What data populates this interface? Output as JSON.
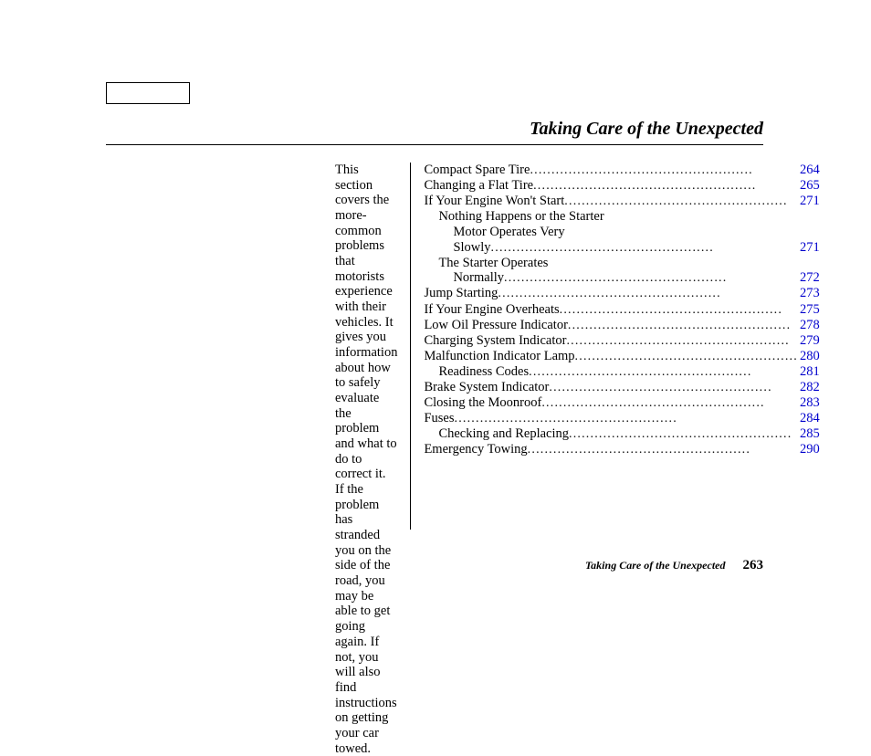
{
  "title": "Taking Care of the Unexpected",
  "intro": "This section covers the more-common problems that motorists experience with their vehicles. It gives you information about how to safely evaluate the problem and what to do to correct it. If the problem has stranded you on the side of the road, you may be able to get going again. If not, you will also find instructions on getting your car towed.",
  "toc": [
    {
      "label": "Compact Spare Tire",
      "page": "264",
      "indent": 0,
      "dots": true
    },
    {
      "label": "Changing a Flat Tire",
      "page": "265",
      "indent": 0,
      "dots": true
    },
    {
      "label": "If Your Engine Won't Start",
      "page": "271",
      "indent": 0,
      "dots": true
    },
    {
      "label": "Nothing Happens or the Starter",
      "page": "",
      "indent": 1,
      "dots": false
    },
    {
      "label": "Motor Operates Very",
      "page": "",
      "indent": 2,
      "dots": false
    },
    {
      "label": "Slowly",
      "page": "271",
      "indent": 2,
      "dots": true
    },
    {
      "label": "The Starter Operates",
      "page": "",
      "indent": 1,
      "dots": false
    },
    {
      "label": "Normally",
      "page": "272",
      "indent": 2,
      "dots": true
    },
    {
      "label": "Jump Starting",
      "page": "273",
      "indent": 0,
      "dots": true
    },
    {
      "label": "If Your Engine Overheats",
      "page": "275",
      "indent": 0,
      "dots": true
    },
    {
      "label": "Low Oil Pressure Indicator",
      "page": "278",
      "indent": 0,
      "dots": true
    },
    {
      "label": "Charging System Indicator",
      "page": "279",
      "indent": 0,
      "dots": true
    },
    {
      "label": "Malfunction Indicator Lamp",
      "page": "280",
      "indent": 0,
      "dots": true
    },
    {
      "label": "Readiness Codes",
      "page": "281",
      "indent": 1,
      "dots": true
    },
    {
      "label": "Brake System Indicator",
      "page": "282",
      "indent": 0,
      "dots": true
    },
    {
      "label": "Closing the Moonroof",
      "page": "283",
      "indent": 0,
      "dots": true
    },
    {
      "label": "Fuses",
      "page": "284",
      "indent": 0,
      "dots": true
    },
    {
      "label": "Checking and Replacing",
      "page": "285",
      "indent": 1,
      "dots": true
    },
    {
      "label": "Emergency Towing",
      "page": "290",
      "indent": 0,
      "dots": true
    }
  ],
  "footer": {
    "label": "Taking Care of the Unexpected",
    "page": "263"
  },
  "colors": {
    "link": "#0000cc",
    "text": "#000000",
    "bg": "#ffffff"
  }
}
